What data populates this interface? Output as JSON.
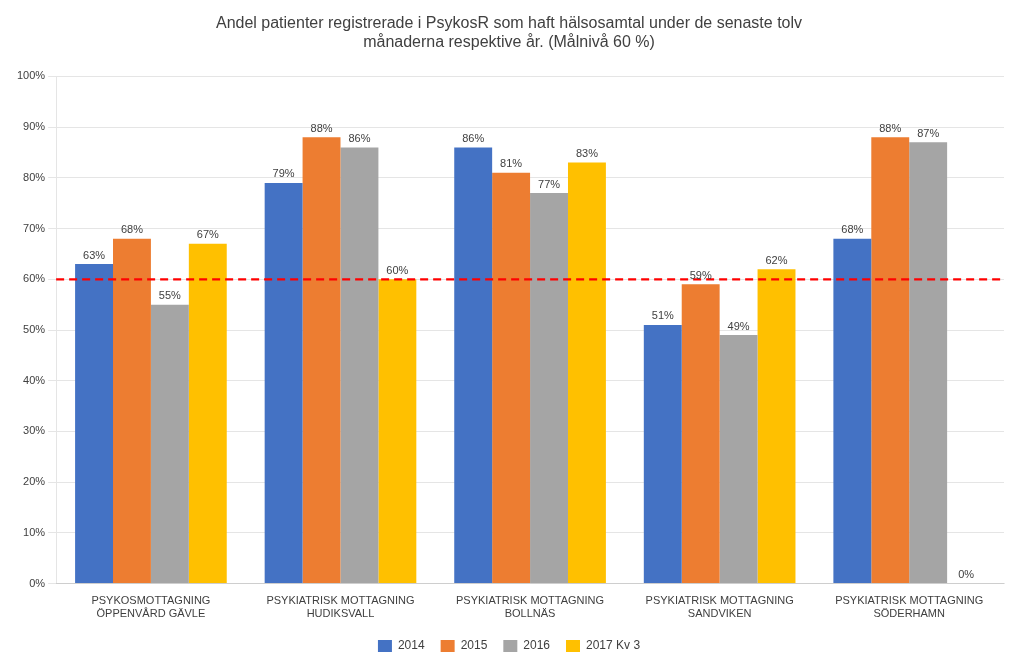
{
  "chart_data": {
    "type": "bar",
    "title": "Andel patienter registrerade i PsykosR som haft hälsosamtal under de senaste tolv\nmånaderna respektive år. (Målnivå 60 %)",
    "categories": [
      "PSYKOSMOTTAGNING\nÖPPENVÅRD GÄVLE",
      "PSYKIATRISK MOTTAGNING\nHUDIKSVALL",
      "PSYKIATRISK MOTTAGNING\nBOLLNÄS",
      "PSYKIATRISK MOTTAGNING\nSANDVIKEN",
      "PSYKIATRISK MOTTAGNING\nSÖDERHAMN"
    ],
    "series": [
      {
        "name": "2014",
        "color": "#4472C4",
        "values": [
          0.63,
          0.79,
          0.86,
          0.51,
          0.68
        ],
        "value_labels": [
          "63%",
          "79%",
          "86%",
          "51%",
          "68%"
        ]
      },
      {
        "name": "2015",
        "color": "#ED7D31",
        "values": [
          0.68,
          0.88,
          0.81,
          0.59,
          0.88
        ],
        "value_labels": [
          "68%",
          "88%",
          "81%",
          "59%",
          "88%"
        ]
      },
      {
        "name": "2016",
        "color": "#A5A5A5",
        "values": [
          0.55,
          0.86,
          0.77,
          0.49,
          0.87
        ],
        "value_labels": [
          "55%",
          "86%",
          "77%",
          "49%",
          "87%"
        ]
      },
      {
        "name": "2017 Kv 3",
        "color": "#FFC000",
        "values": [
          0.67,
          0.6,
          0.83,
          0.62,
          0.0
        ],
        "value_labels": [
          "67%",
          "60%",
          "83%",
          "62%",
          "0%"
        ]
      }
    ],
    "ylim": [
      0,
      1.0
    ],
    "yticks": [
      {
        "value": 0.0,
        "label": "0%"
      },
      {
        "value": 0.1,
        "label": "10%"
      },
      {
        "value": 0.2,
        "label": "20%"
      },
      {
        "value": 0.3,
        "label": "30%"
      },
      {
        "value": 0.4,
        "label": "40%"
      },
      {
        "value": 0.5,
        "label": "50%"
      },
      {
        "value": 0.6,
        "label": "60%"
      },
      {
        "value": 0.7,
        "label": "70%"
      },
      {
        "value": 0.8,
        "label": "80%"
      },
      {
        "value": 0.9,
        "label": "90%"
      },
      {
        "value": 1.0,
        "label": "100%"
      }
    ],
    "hlines": [
      {
        "value": 0.6,
        "color": "#FF0000",
        "line_style": "dashed"
      }
    ],
    "grid": true,
    "legend": "bottom",
    "data_labels": true
  }
}
